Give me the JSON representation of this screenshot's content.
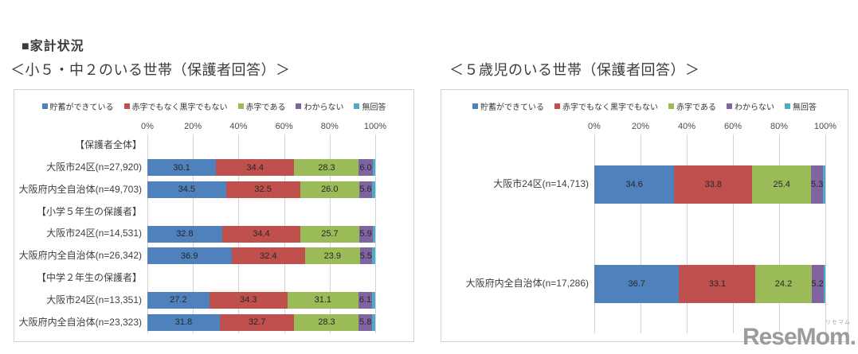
{
  "page_title": "■家計状況",
  "watermark": {
    "text": "ReseMom.",
    "ruby": "リセマム"
  },
  "palette": {
    "series_colors": [
      "#4F81BD",
      "#C0504D",
      "#9BBB59",
      "#8064A2",
      "#4BACC6"
    ],
    "grid_color": "#d4d4d4",
    "border_color": "#c8d4e0"
  },
  "chart_data": [
    {
      "type": "bar",
      "orientation": "horizontal-stacked",
      "title": "＜小５・中２のいる世帯（保護者回答）＞",
      "legend": [
        "貯蓄ができている",
        "赤字でもなく黒字でもない",
        "赤字である",
        "わからない",
        "無回答"
      ],
      "xlim": [
        0,
        100
      ],
      "ticks": [
        "0%",
        "20%",
        "40%",
        "60%",
        "80%",
        "100%"
      ],
      "grid": true,
      "legend_position": "top",
      "rows": [
        {
          "kind": "group",
          "label": "【保護者全体】"
        },
        {
          "kind": "bar",
          "label": "大阪市24区(n=27,920)",
          "values": [
            30.1,
            34.4,
            28.3,
            6.0,
            1.2
          ],
          "seg_labels": [
            "30.1",
            "34.4",
            "28.3",
            "6.0",
            ""
          ]
        },
        {
          "kind": "bar",
          "label": "大阪府内全自治体(n=49,703)",
          "values": [
            34.5,
            32.5,
            26.0,
            5.6,
            1.4
          ],
          "seg_labels": [
            "34.5",
            "32.5",
            "26.0",
            "5.6",
            ""
          ]
        },
        {
          "kind": "group",
          "label": "【小学５年生の保護者】"
        },
        {
          "kind": "bar",
          "label": "大阪市24区(n=14,531)",
          "values": [
            32.8,
            34.4,
            25.7,
            5.9,
            1.2
          ],
          "seg_labels": [
            "32.8",
            "34.4",
            "25.7",
            "5.9",
            ""
          ]
        },
        {
          "kind": "bar",
          "label": "大阪府内全自治体(n=26,342)",
          "values": [
            36.9,
            32.4,
            23.9,
            5.5,
            1.3
          ],
          "seg_labels": [
            "36.9",
            "32.4",
            "23.9",
            "5.5",
            ""
          ]
        },
        {
          "kind": "group",
          "label": "【中学２年生の保護者】"
        },
        {
          "kind": "bar",
          "label": "大阪市24区(n=13,351)",
          "values": [
            27.2,
            34.3,
            31.1,
            6.1,
            1.3
          ],
          "seg_labels": [
            "27.2",
            "34.3",
            "31.1",
            "6.1",
            ""
          ]
        },
        {
          "kind": "bar",
          "label": "大阪府内全自治体(n=23,323)",
          "values": [
            31.8,
            32.7,
            28.3,
            5.8,
            1.4
          ],
          "seg_labels": [
            "31.8",
            "32.7",
            "28.3",
            "5.8",
            ""
          ]
        }
      ]
    },
    {
      "type": "bar",
      "orientation": "horizontal-stacked",
      "title": "＜５歳児のいる世帯（保護者回答）＞",
      "legend": [
        "貯蓄ができている",
        "赤字でもなく黒字でもない",
        "赤字である",
        "わからない",
        "無回答"
      ],
      "xlim": [
        0,
        100
      ],
      "ticks": [
        "0%",
        "20%",
        "40%",
        "60%",
        "80%",
        "100%"
      ],
      "grid": true,
      "legend_position": "top",
      "rows": [
        {
          "kind": "bar",
          "label": "大阪市24区(n=14,713)",
          "values": [
            34.6,
            33.8,
            25.4,
            5.3,
            0.9
          ],
          "seg_labels": [
            "34.6",
            "33.8",
            "25.4",
            "5.3",
            ""
          ]
        },
        {
          "kind": "bar",
          "label": "大阪府内全自治体(n=17,286)",
          "values": [
            36.7,
            33.1,
            24.2,
            5.2,
            0.8
          ],
          "seg_labels": [
            "36.7",
            "33.1",
            "24.2",
            "5.2",
            ""
          ]
        }
      ]
    }
  ]
}
